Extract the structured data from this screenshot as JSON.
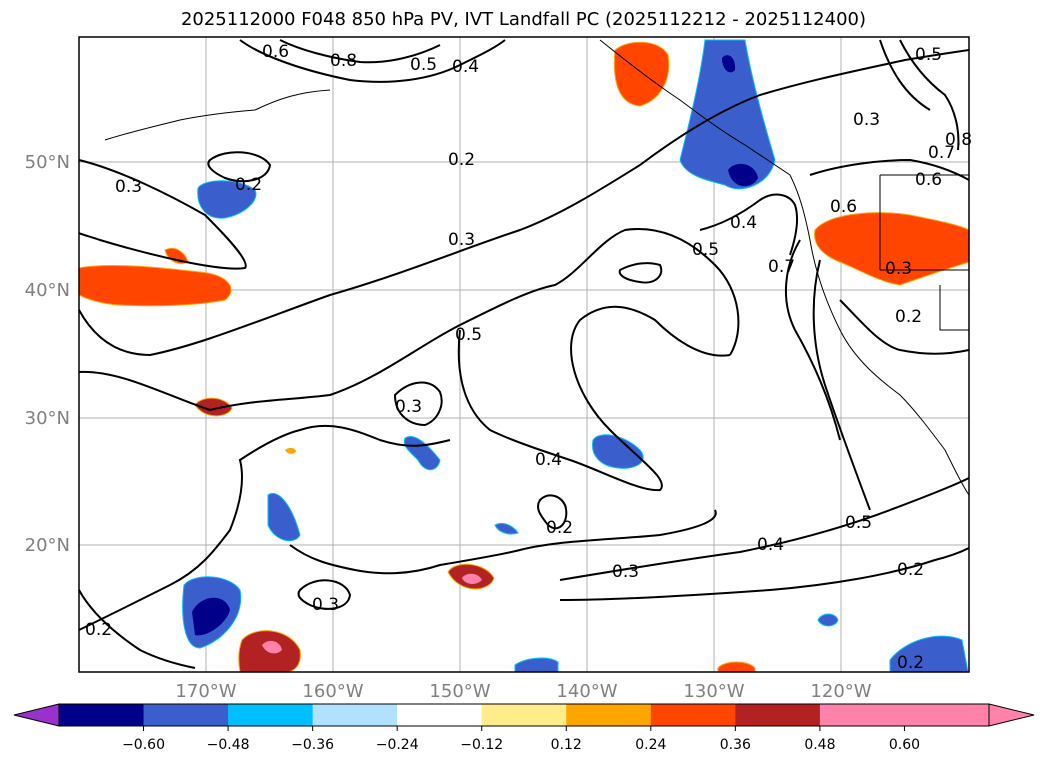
{
  "title": "2025112000 F048 850 hPa PV, IVT Landfall PC (2025112212 - 2025112400)",
  "map": {
    "lat_labels": [
      "50°N",
      "40°N",
      "30°N",
      "20°N"
    ],
    "lon_labels": [
      "170°W",
      "160°W",
      "150°W",
      "140°W",
      "130°W",
      "120°W"
    ],
    "contour_labels": [
      "0.6",
      "0.8",
      "0.5",
      "0.4",
      "0.5",
      "0.3",
      "0.8",
      "0.7",
      "0.6",
      "0.2",
      "0.3",
      "0.2",
      "0.3",
      "0.4",
      "0.6",
      "0.5",
      "0.7",
      "0.3",
      "0.2",
      "0.5",
      "0.3",
      "0.4",
      "0.2",
      "0.3",
      "0.4",
      "0.5",
      "0.2",
      "0.3",
      "0.2",
      "0.2"
    ]
  },
  "colorbar": {
    "ticks": [
      "−0.60",
      "−0.48",
      "−0.36",
      "−0.24",
      "−0.12",
      "0.12",
      "0.24",
      "0.36",
      "0.48",
      "0.60"
    ],
    "colors": [
      "#9932cc",
      "#00008b",
      "#3a5fcd",
      "#00bfff",
      "#b0e2ff",
      "#ffffff",
      "#ffec8b",
      "#ffa500",
      "#ff4500",
      "#b22222",
      "#ff82ab",
      "#ff82ab"
    ]
  }
}
